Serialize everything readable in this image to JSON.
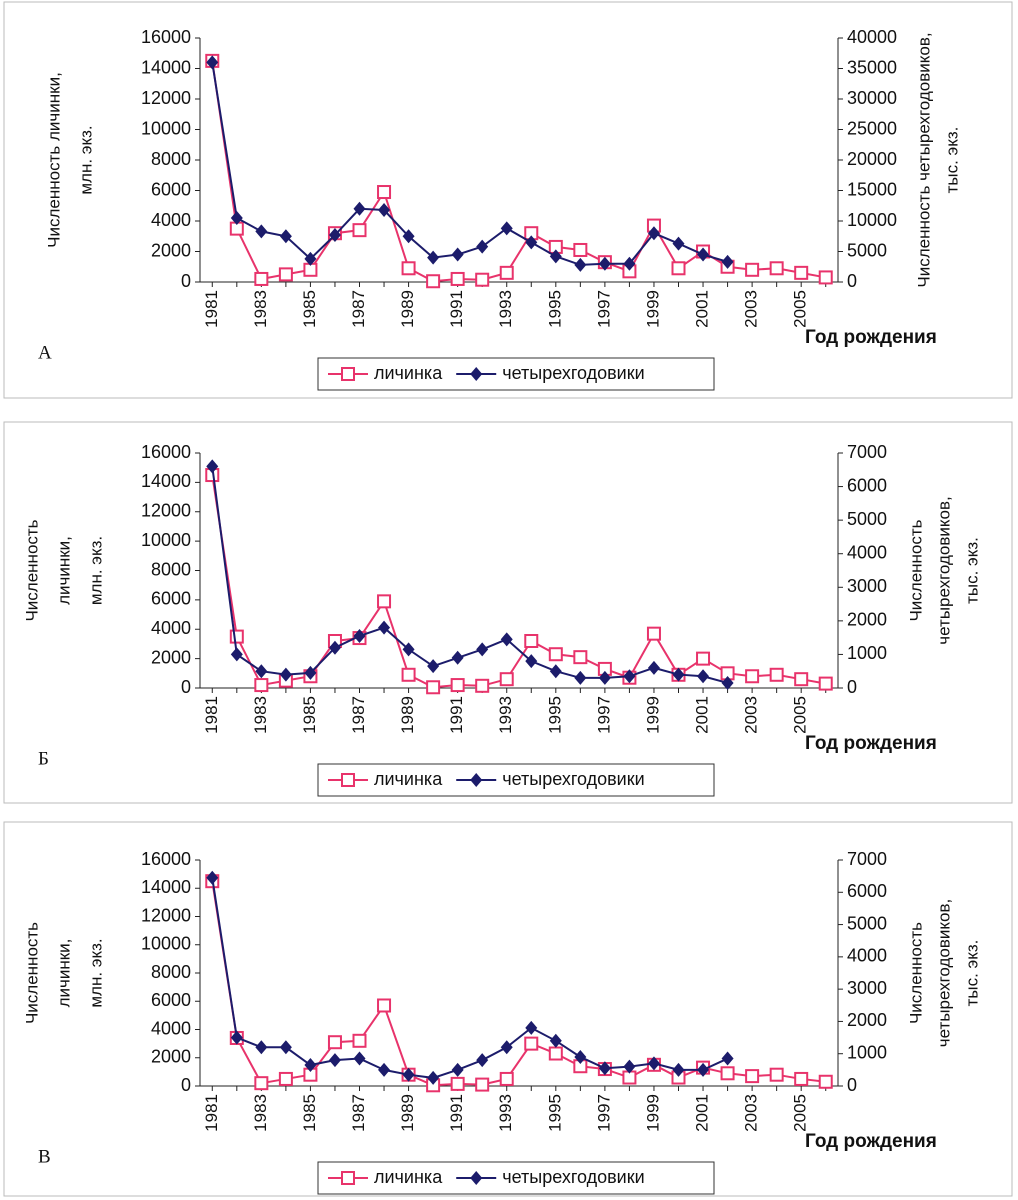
{
  "chart_data": [
    {
      "type": "line",
      "panel": "А",
      "y_label": [
        "Численность личинки,",
        "млн. экз."
      ],
      "y2_label": [
        "Численность четырехгодовиков,",
        "тыс. экз."
      ],
      "x_label": "Год рождения",
      "categories": [
        "1981",
        null,
        "1983",
        null,
        "1985",
        null,
        "1987",
        null,
        "1989",
        null,
        "1991",
        null,
        "1993",
        null,
        "1995",
        null,
        "1997",
        null,
        "1999",
        null,
        "2001",
        null,
        "2003",
        null,
        "2005",
        null
      ],
      "ylim": [
        0,
        16000
      ],
      "yticks": [
        0,
        2000,
        4000,
        6000,
        8000,
        10000,
        12000,
        14000,
        16000
      ],
      "y2lim": [
        0,
        40000
      ],
      "y2ticks": [
        0,
        5000,
        10000,
        15000,
        20000,
        25000,
        30000,
        35000,
        40000
      ],
      "series": [
        {
          "name": "личинка",
          "color": "#e8336b",
          "marker": "square",
          "values": [
            14500,
            3500,
            200,
            500,
            800,
            3200,
            3400,
            5900,
            900,
            50,
            200,
            150,
            600,
            3200,
            2300,
            2100,
            1300,
            700,
            3700,
            900,
            2000,
            1000,
            800,
            900,
            600,
            300
          ]
        },
        {
          "name": "четырехгодовики",
          "color": "#1c1c6b",
          "marker": "diamond",
          "axis": "y2",
          "values": [
            36000,
            10500,
            8300,
            7500,
            3800,
            7700,
            12000,
            11800,
            7500,
            4000,
            4500,
            5800,
            8800,
            6500,
            4200,
            2800,
            3000,
            3000,
            8000,
            6300,
            4500,
            3300,
            null,
            null,
            null,
            null
          ]
        }
      ]
    },
    {
      "type": "line",
      "panel": "Б",
      "y_label": [
        "Численность",
        "личинки,",
        "млн. экз."
      ],
      "y2_label": [
        "Численность",
        "четырехгодовиков,",
        "тыс. экз."
      ],
      "x_label": "Год рождения",
      "categories": [
        "1981",
        null,
        "1983",
        null,
        "1985",
        null,
        "1987",
        null,
        "1989",
        null,
        "1991",
        null,
        "1993",
        null,
        "1995",
        null,
        "1997",
        null,
        "1999",
        null,
        "2001",
        null,
        "2003",
        null,
        "2005",
        null
      ],
      "ylim": [
        0,
        16000
      ],
      "yticks": [
        0,
        2000,
        4000,
        6000,
        8000,
        10000,
        12000,
        14000,
        16000
      ],
      "y2lim": [
        0,
        7000
      ],
      "y2ticks": [
        0,
        1000,
        2000,
        3000,
        4000,
        5000,
        6000,
        7000
      ],
      "series": [
        {
          "name": "личинка",
          "color": "#e8336b",
          "marker": "square",
          "values": [
            14500,
            3500,
            200,
            500,
            800,
            3200,
            3400,
            5900,
            900,
            50,
            200,
            150,
            600,
            3200,
            2300,
            2100,
            1300,
            700,
            3700,
            900,
            2000,
            1000,
            800,
            900,
            600,
            300
          ]
        },
        {
          "name": "четырехгодовики",
          "color": "#1c1c6b",
          "marker": "diamond",
          "axis": "y2",
          "values": [
            6600,
            1000,
            500,
            400,
            450,
            1200,
            1550,
            1800,
            1150,
            650,
            900,
            1150,
            1450,
            800,
            500,
            300,
            300,
            350,
            600,
            400,
            350,
            150,
            null,
            null,
            null,
            null
          ]
        }
      ]
    },
    {
      "type": "line",
      "panel": "В",
      "y_label": [
        "Численность",
        "личинки,",
        "млн. экз."
      ],
      "y2_label": [
        "Численность",
        "четырехгодовиков,",
        "тыс. экз."
      ],
      "x_label": "Год рождения",
      "categories": [
        "1981",
        null,
        "1983",
        null,
        "1985",
        null,
        "1987",
        null,
        "1989",
        null,
        "1991",
        null,
        "1993",
        null,
        "1995",
        null,
        "1997",
        null,
        "1999",
        null,
        "2001",
        null,
        "2003",
        null,
        "2005",
        null
      ],
      "ylim": [
        0,
        16000
      ],
      "yticks": [
        0,
        2000,
        4000,
        6000,
        8000,
        10000,
        12000,
        14000,
        16000
      ],
      "y2lim": [
        0,
        7000
      ],
      "y2ticks": [
        0,
        1000,
        2000,
        3000,
        4000,
        5000,
        6000,
        7000
      ],
      "series": [
        {
          "name": "личинка",
          "color": "#e8336b",
          "marker": "square",
          "values": [
            14500,
            3400,
            200,
            500,
            800,
            3100,
            3200,
            5700,
            800,
            50,
            150,
            100,
            500,
            3000,
            2300,
            1400,
            1200,
            600,
            1500,
            600,
            1300,
            900,
            700,
            800,
            500,
            300
          ]
        },
        {
          "name": "четырехгодовики",
          "color": "#1c1c6b",
          "marker": "diamond",
          "axis": "y2",
          "values": [
            6450,
            1500,
            1200,
            1200,
            650,
            800,
            850,
            500,
            350,
            250,
            500,
            800,
            1200,
            1800,
            1400,
            900,
            550,
            600,
            700,
            500,
            500,
            850,
            null,
            null,
            null,
            null
          ]
        }
      ]
    }
  ]
}
